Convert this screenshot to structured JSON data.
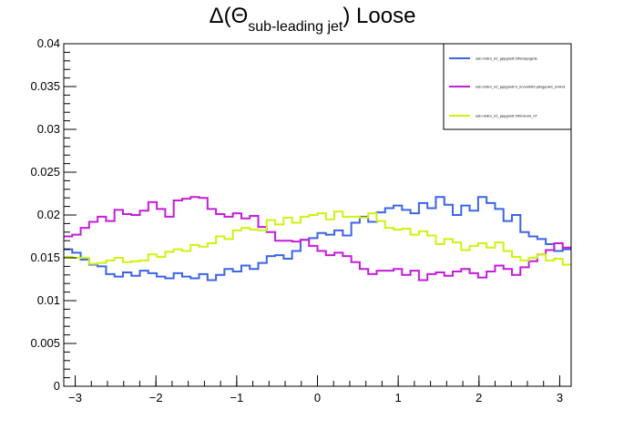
{
  "chart_data": {
    "type": "line",
    "title": {
      "prefix": "Δ(Θ",
      "subscript": "sub-leading jet",
      "suffix": ") Loose"
    },
    "xlabel": "",
    "ylabel": "",
    "xlim": [
      -3.1416,
      3.1416
    ],
    "ylim": [
      0,
      0.04
    ],
    "x_ticks": [
      -3,
      -2,
      -1,
      0,
      1,
      2,
      3
    ],
    "x_tick_labels": [
      "−3",
      "−2",
      "−1",
      "0",
      "1",
      "2",
      "3"
    ],
    "y_ticks": [
      0,
      0.005,
      0.01,
      0.015,
      0.02,
      0.025,
      0.03,
      0.035,
      0.04
    ],
    "y_tick_labels": [
      "0",
      "0.005",
      "0.01",
      "0.015",
      "0.02",
      "0.025",
      "0.03",
      "0.035",
      "0.04"
    ],
    "grid": false,
    "legend_position": "top-right",
    "histogram": true,
    "nbins": 60,
    "series": [
      {
        "name": "sub.nGEn_n2_pppgrodt.h/fmdsyugrde",
        "color": "#3b64e8",
        "values": [
          0.016,
          0.0156,
          0.0148,
          0.0142,
          0.014,
          0.0131,
          0.0128,
          0.0133,
          0.0129,
          0.0135,
          0.0132,
          0.0128,
          0.0126,
          0.0132,
          0.0128,
          0.0126,
          0.0131,
          0.0124,
          0.013,
          0.0137,
          0.0134,
          0.0141,
          0.0137,
          0.0144,
          0.0152,
          0.0153,
          0.0149,
          0.0158,
          0.0171,
          0.0173,
          0.0179,
          0.0177,
          0.0182,
          0.0176,
          0.0191,
          0.0198,
          0.0192,
          0.0203,
          0.0208,
          0.0211,
          0.0206,
          0.0202,
          0.0214,
          0.0208,
          0.0221,
          0.0212,
          0.02,
          0.0211,
          0.0205,
          0.0221,
          0.0214,
          0.0207,
          0.0193,
          0.02,
          0.018,
          0.0175,
          0.0172,
          0.0166,
          0.0158,
          0.016
        ]
      },
      {
        "name": "sub.nGEn_n2_pppgrodt.h_nrvumhlbt pdxgyulvb_nrvlnd",
        "color": "#c41dd8",
        "values": [
          0.0175,
          0.0177,
          0.0185,
          0.0192,
          0.0198,
          0.0193,
          0.0206,
          0.0201,
          0.02,
          0.0205,
          0.0215,
          0.0207,
          0.0198,
          0.0217,
          0.0219,
          0.0221,
          0.022,
          0.0207,
          0.0201,
          0.0198,
          0.0202,
          0.0196,
          0.0199,
          0.0186,
          0.018,
          0.017,
          0.017,
          0.0169,
          0.0171,
          0.0164,
          0.0158,
          0.0153,
          0.0156,
          0.0152,
          0.0145,
          0.0137,
          0.0131,
          0.0135,
          0.0135,
          0.0137,
          0.013,
          0.0135,
          0.0124,
          0.0131,
          0.0133,
          0.0129,
          0.0134,
          0.0137,
          0.0132,
          0.0127,
          0.0134,
          0.0141,
          0.0137,
          0.013,
          0.0139,
          0.0146,
          0.0154,
          0.0159,
          0.0167,
          0.0162
        ]
      },
      {
        "name": "sub.nGEn_n2_pppgrodt.h/fmdvum_07",
        "color": "#d0f20f",
        "values": [
          0.0151,
          0.015,
          0.015,
          0.0143,
          0.0144,
          0.0147,
          0.015,
          0.0145,
          0.0146,
          0.0147,
          0.0154,
          0.0151,
          0.0157,
          0.016,
          0.0158,
          0.0165,
          0.0163,
          0.0167,
          0.0175,
          0.0172,
          0.0182,
          0.0185,
          0.0183,
          0.0182,
          0.0194,
          0.0189,
          0.0197,
          0.0191,
          0.0198,
          0.02,
          0.0202,
          0.0195,
          0.0204,
          0.0198,
          0.0198,
          0.0197,
          0.0202,
          0.0193,
          0.0185,
          0.0183,
          0.0184,
          0.0177,
          0.0181,
          0.0176,
          0.0166,
          0.0172,
          0.0168,
          0.0159,
          0.0164,
          0.0167,
          0.0162,
          0.0168,
          0.0158,
          0.0151,
          0.0147,
          0.015,
          0.0154,
          0.0147,
          0.0149,
          0.0142
        ]
      }
    ]
  }
}
